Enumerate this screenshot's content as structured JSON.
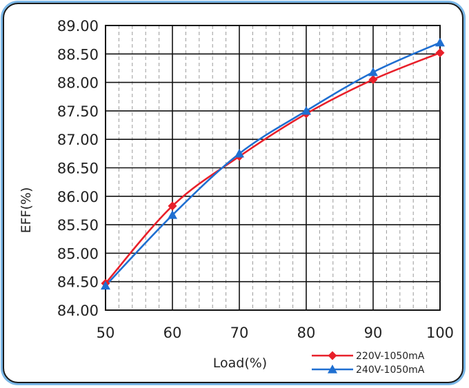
{
  "chart_data": {
    "type": "line",
    "title": "",
    "xlabel": "Load(%)",
    "ylabel": "EFF(%)",
    "x": [
      50,
      60,
      70,
      80,
      90,
      100
    ],
    "xlim": [
      50,
      100
    ],
    "ylim": [
      84.0,
      89.0
    ],
    "x_ticks": [
      "50",
      "60",
      "70",
      "80",
      "90",
      "100"
    ],
    "y_ticks": [
      "84.00",
      "84.50",
      "85.00",
      "85.50",
      "86.00",
      "86.50",
      "87.00",
      "87.50",
      "88.00",
      "88.50",
      "89.00"
    ],
    "grid": true,
    "legend_position": "bottom-right",
    "series": [
      {
        "name": "220V-1050mA",
        "color": "#e8202a",
        "marker": "diamond",
        "values": [
          84.47,
          85.83,
          86.7,
          87.45,
          88.05,
          88.52
        ]
      },
      {
        "name": "240V-1050mA",
        "color": "#1f6fd1",
        "marker": "triangle",
        "values": [
          84.43,
          85.67,
          86.75,
          87.5,
          88.18,
          88.7
        ]
      }
    ]
  }
}
